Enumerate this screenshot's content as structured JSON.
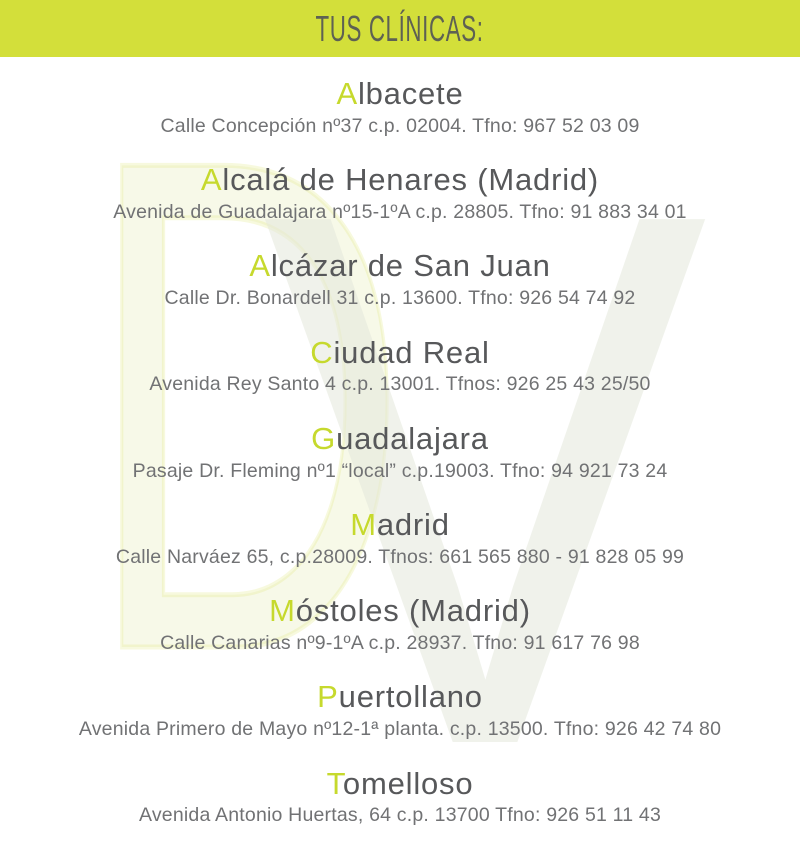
{
  "header": {
    "title": "TUS CLÍNICAS:"
  },
  "watermark": {
    "letters": [
      "D",
      "V"
    ]
  },
  "colors": {
    "header_bg": "#d3df3a",
    "accent_initial": "#c6d92d",
    "city_text": "#57585a",
    "address_text": "#717274",
    "header_text": "#5e6153"
  },
  "clinics": [
    {
      "initial": "A",
      "name_rest": "lbacete",
      "address": "Calle Concepción nº37 c.p. 02004. Tfno: 967 52 03 09"
    },
    {
      "initial": "A",
      "name_rest": "lcalá de Henares (Madrid)",
      "address": "Avenida de Guadalajara nº15-1ºA  c.p. 28805. Tfno: 91 883 34 01"
    },
    {
      "initial": "A",
      "name_rest": "lcázar de San Juan",
      "address": "Calle Dr. Bonardell 31  c.p. 13600. Tfno: 926 54 74 92"
    },
    {
      "initial": "C",
      "name_rest": "iudad Real",
      "address": "Avenida Rey Santo 4  c.p. 13001. Tfnos: 926 25 43 25/50"
    },
    {
      "initial": "G",
      "name_rest": "uadalajara",
      "address": "Pasaje Dr. Fleming nº1 “local”  c.p.19003. Tfno: 94 921 73 24"
    },
    {
      "initial": "M",
      "name_rest": "adrid",
      "address": "Calle Narváez 65,  c.p.28009. Tfnos: 661 565 880 - 91 828 05 99"
    },
    {
      "initial": "M",
      "name_rest": "óstoles (Madrid)",
      "address": "Calle Canarias nº9-1ºA  c.p. 28937. Tfno: 91 617 76 98"
    },
    {
      "initial": "P",
      "name_rest": "uertollano",
      "address": "Avenida Primero de Mayo nº12-1ª planta. c.p. 13500. Tfno: 926 42 74 80"
    },
    {
      "initial": "T",
      "name_rest": "omelloso",
      "address": "Avenida Antonio Huertas, 64 c.p. 13700 Tfno: 926 51 11 43"
    }
  ]
}
